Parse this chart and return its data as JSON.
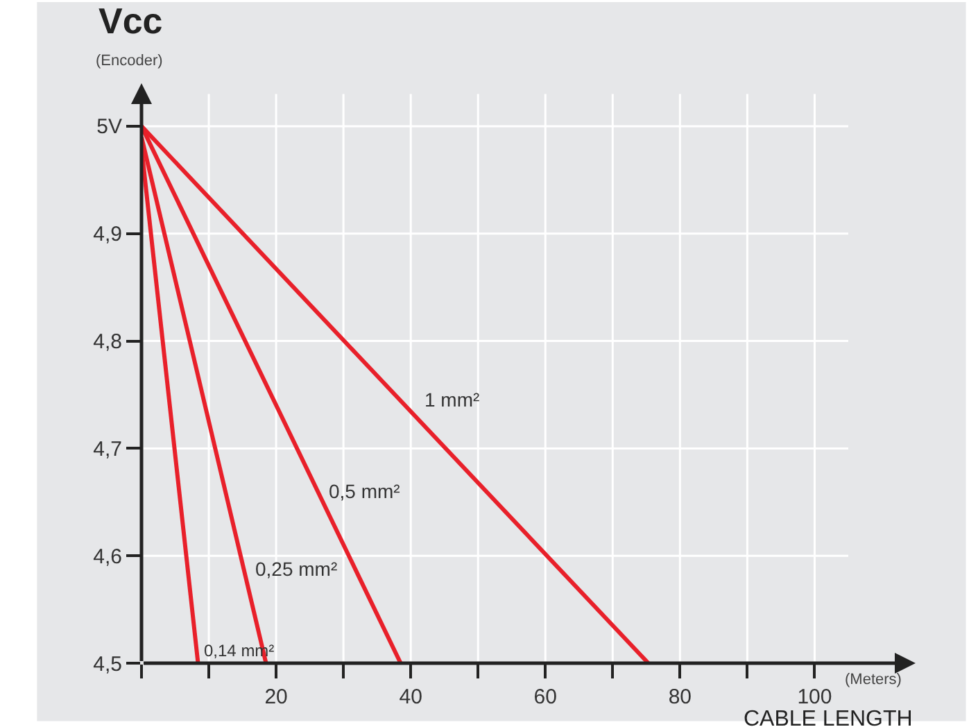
{
  "chart_data": {
    "type": "line",
    "title": "Vcc",
    "subtitle": "(Encoder)",
    "xlabel": "CABLE LENGTH",
    "annotations": [
      "(Meters)"
    ],
    "series": [
      {
        "name": "1 mm²",
        "color": "#e8202a",
        "x": [
          0,
          75.3
        ],
        "values": [
          5.0,
          4.5
        ]
      },
      {
        "name": "0,5 mm²",
        "color": "#e8202a",
        "x": [
          0,
          38.5
        ],
        "values": [
          5.0,
          4.5
        ]
      },
      {
        "name": "0,25 mm²",
        "color": "#e8202a",
        "x": [
          0,
          18.5
        ],
        "values": [
          4.99,
          4.5
        ]
      },
      {
        "name": "0,14 mm²",
        "color": "#e8202a",
        "x": [
          0,
          8.4
        ],
        "values": [
          4.98,
          4.5
        ]
      }
    ],
    "xlim": [
      0,
      115
    ],
    "ylim": [
      4.5,
      5.04
    ],
    "xticks": [
      {
        "value": 0,
        "label": null
      },
      {
        "value": 10,
        "label": null
      },
      20,
      {
        "value": 30,
        "label": null
      },
      40,
      {
        "value": 50,
        "label": null
      },
      60,
      {
        "value": 70,
        "label": null
      },
      80,
      {
        "value": 90,
        "label": null
      },
      100
    ],
    "yticks": [
      {
        "value": 4.5,
        "label": "4,5"
      },
      {
        "value": 4.6,
        "label": "4,6"
      },
      {
        "value": 4.7,
        "label": "4,7"
      },
      {
        "value": 4.8,
        "label": "4,8"
      },
      {
        "value": 4.9,
        "label": "4,9"
      },
      {
        "value": 5,
        "label": "5V"
      }
    ],
    "grid": true,
    "legend": false,
    "marker": "none",
    "line_style": "solid"
  }
}
